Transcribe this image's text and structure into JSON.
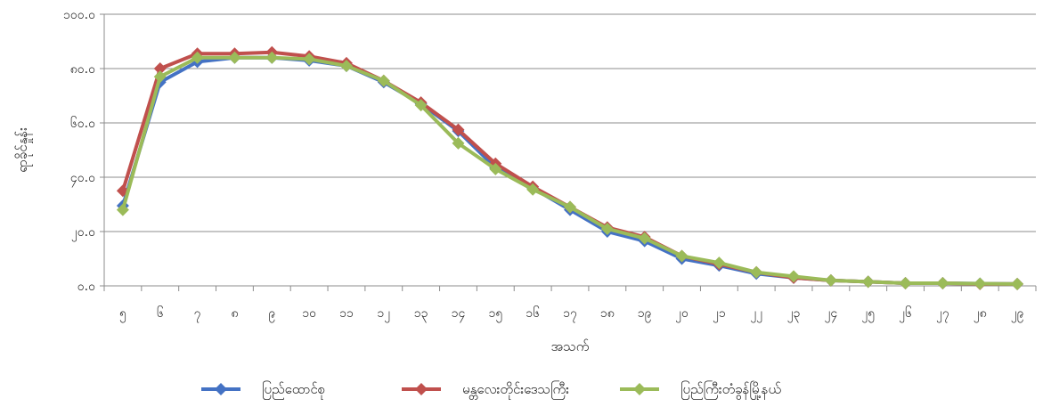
{
  "chart_data": {
    "type": "line",
    "title": "",
    "xlabel": "အသက်",
    "ylabel": "ရာခိုင်နှုန်း",
    "categories": [
      "၅",
      "၆",
      "၇",
      "၈",
      "၉",
      "၁၀",
      "၁၁",
      "၁၂",
      "၁၃",
      "၁၄",
      "၁၅",
      "၁၆",
      "၁၇",
      "၁၈",
      "၁၉",
      "၂၀",
      "၂၁",
      "၂၂",
      "၂၃",
      "၂၄",
      "၂၅",
      "၂၆",
      "၂၇",
      "၂၈",
      "၂၉"
    ],
    "y_tick_labels": [
      "၀.၀",
      "၂၀.၀",
      "၄၀.၀",
      "၆၀.၀",
      "၈၀.၀",
      "၁၀၀.၀"
    ],
    "y_ticks": [
      0,
      20,
      40,
      60,
      80,
      100
    ],
    "ylim": [
      0,
      100
    ],
    "grid": "horizontal",
    "legend_position": "bottom",
    "series": [
      {
        "name": "ပြည်ထောင်စု",
        "color": "#4472C4",
        "values": [
          29.5,
          75.0,
          82.5,
          84.0,
          84.0,
          83.0,
          81.0,
          75.0,
          67.0,
          57.0,
          43.5,
          36.0,
          28.0,
          20.0,
          16.5,
          10.0,
          7.5,
          4.5,
          3.0,
          2.0,
          1.5,
          1.0,
          1.0,
          0.8,
          0.7
        ]
      },
      {
        "name": "မန္တလေးတိုင်းဒေသကြီး",
        "color": "#C0504D",
        "values": [
          35.0,
          80.0,
          85.5,
          85.5,
          86.0,
          84.5,
          82.0,
          75.5,
          67.5,
          57.5,
          45.0,
          36.5,
          29.0,
          21.5,
          18.0,
          11.0,
          8.0,
          5.0,
          3.0,
          2.0,
          1.5,
          1.0,
          1.0,
          0.7,
          0.7
        ]
      },
      {
        "name": "ပြည်ကြီးတံခွန်မြို့နယ်",
        "color": "#9BBB59",
        "values": [
          28.0,
          77.0,
          84.0,
          84.0,
          84.0,
          83.5,
          81.0,
          75.5,
          66.5,
          52.5,
          43.0,
          35.5,
          29.0,
          21.0,
          17.5,
          11.0,
          8.5,
          5.0,
          3.5,
          2.0,
          1.5,
          1.0,
          1.0,
          0.8,
          0.7
        ]
      }
    ]
  }
}
